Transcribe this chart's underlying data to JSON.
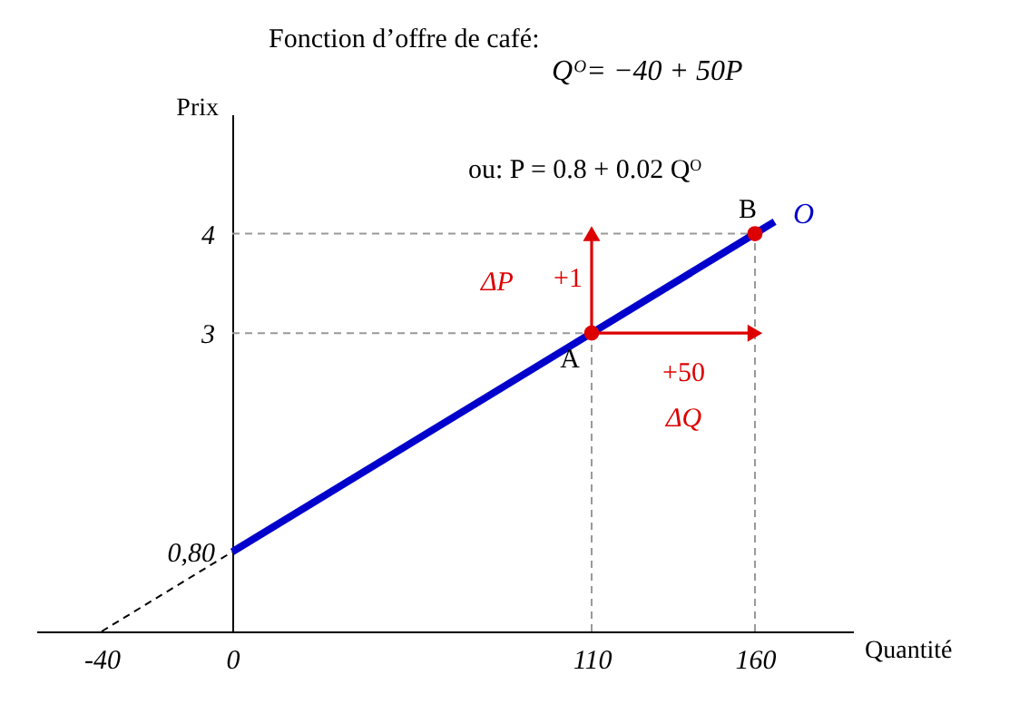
{
  "chart_data": {
    "type": "line",
    "title": "Fonction d’offre de café:",
    "xlabel": "Quantité",
    "ylabel": "Prix",
    "xlim": [
      -60,
      190
    ],
    "ylim": [
      0,
      5.2
    ],
    "xticks": [
      -40,
      0,
      110,
      160
    ],
    "yticks": [
      {
        "value": 0.8,
        "label": "0,80"
      },
      3,
      4
    ],
    "grid": false,
    "series": [
      {
        "color": "#999999",
        "line_style": "dashed",
        "x": [
          0,
          110
        ],
        "values": [
          3,
          3
        ]
      },
      {
        "color": "#999999",
        "line_style": "dashed",
        "x": [
          0,
          160
        ],
        "values": [
          4,
          4
        ]
      },
      {
        "color": "#999999",
        "line_style": "dashed",
        "x": [
          110,
          110
        ],
        "values": [
          0,
          3
        ]
      },
      {
        "color": "#999999",
        "line_style": "dashed",
        "x": [
          160,
          160
        ],
        "values": [
          0,
          4
        ]
      },
      {
        "color": "#000000",
        "line_style": "dashed",
        "x": [
          -40,
          0
        ],
        "values": [
          0,
          0.8
        ]
      },
      {
        "name": "O",
        "color": "#0000cc",
        "line_style": "solid",
        "x": [
          0,
          110,
          160,
          166
        ],
        "values": [
          0.8,
          3,
          4,
          4.12
        ]
      },
      {
        "color": "#dd0000",
        "line_style": "solid",
        "marker": "triangle",
        "x": [
          110,
          110
        ],
        "values": [
          3,
          4
        ]
      },
      {
        "color": "#dd0000",
        "line_style": "solid",
        "marker": "triangle",
        "x": [
          110,
          160
        ],
        "values": [
          3,
          3
        ]
      },
      {
        "type": "scatter",
        "color": "#dd0000",
        "marker": "circle",
        "x": [
          110,
          160
        ],
        "values": [
          3,
          4
        ]
      }
    ],
    "annotations": [
      "Qᴼ= −40 + 50P",
      "ou:    P = 0.8 + 0.02 Qᴼ",
      {
        "text": "A",
        "x": 110,
        "y": 3
      },
      {
        "text": "B",
        "x": 160,
        "y": 4
      },
      "ΔP",
      "+1",
      "+50",
      "ΔQ"
    ]
  }
}
